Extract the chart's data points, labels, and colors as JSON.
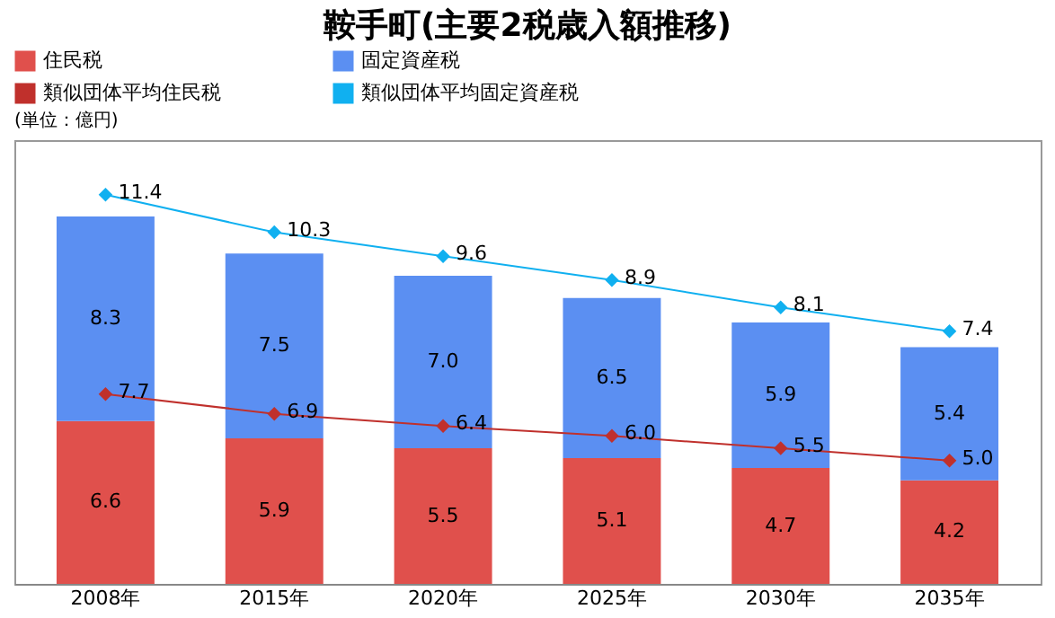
{
  "chart_data": {
    "type": "bar",
    "title": "鞍手町(主要2税歳入額推移)",
    "categories": [
      "2008年",
      "2015年",
      "2020年",
      "2025年",
      "2030年",
      "2035年"
    ],
    "stacked": true,
    "legend": "top",
    "grid": false,
    "ylim": [
      0,
      18
    ],
    "y2lim": [
      0,
      13
    ],
    "tick_labels": "x",
    "annotations": [
      "(単位：億円)"
    ],
    "series": [
      {
        "name": "住民税",
        "color": "#e0504c",
        "values": [
          6.6,
          5.9,
          5.5,
          5.1,
          4.7,
          4.2
        ],
        "value_labels": [
          "6.6",
          "5.9",
          "5.5",
          "5.1",
          "4.7",
          "4.2"
        ]
      },
      {
        "name": "固定資産税",
        "color": "#5b8ff2",
        "values": [
          8.3,
          7.5,
          7.0,
          6.5,
          5.9,
          5.4
        ],
        "value_labels": [
          "8.3",
          "7.5",
          "7.0",
          "6.5",
          "5.9",
          "5.4"
        ]
      },
      {
        "name": "類似団体平均住民税",
        "type": "line",
        "marker": "diamond",
        "color": "#c0302c",
        "values": [
          7.7,
          6.9,
          6.4,
          6.0,
          5.5,
          5.0
        ],
        "value_labels": [
          "7.7",
          "6.9",
          "6.4",
          "6.0",
          "5.5",
          "5.0"
        ]
      },
      {
        "name": "類似団体平均固定資産税",
        "type": "line",
        "axis": "y2",
        "marker": "diamond",
        "color": "#10b0f0",
        "values": [
          11.4,
          10.3,
          9.6,
          8.9,
          8.1,
          7.4
        ],
        "value_labels": [
          "11.4",
          "10.3",
          "9.6",
          "8.9",
          "8.1",
          "7.4"
        ]
      }
    ]
  }
}
